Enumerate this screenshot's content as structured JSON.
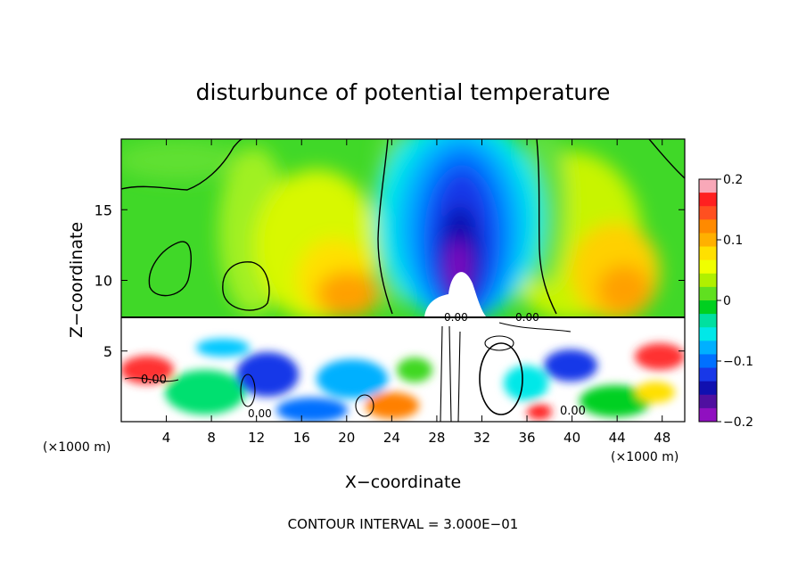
{
  "chart_data": {
    "type": "heatmap",
    "title": "disturbunce of potential temperature",
    "xlabel": "X−coordinate",
    "ylabel": "Z−coordinate",
    "x_unit_left": "(×1000 m)",
    "x_unit_right": "(×1000 m)",
    "xlim": [
      0,
      50
    ],
    "ylim": [
      0,
      20
    ],
    "x_ticks": [
      4,
      8,
      12,
      16,
      20,
      24,
      28,
      32,
      36,
      40,
      44,
      48
    ],
    "y_ticks": [
      5,
      10,
      15
    ],
    "colorbar": {
      "range": [
        -0.2,
        0.2
      ],
      "tick_values": [
        0.2,
        0.1,
        0,
        -0.1,
        -0.2
      ],
      "tick_labels": [
        "0.2",
        "0.1",
        "0",
        "−0.1",
        "−0.2"
      ],
      "colors": [
        "#f8a8b8",
        "#ff2020",
        "#ff5020",
        "#ff8a00",
        "#ffb000",
        "#ffe000",
        "#f0ff00",
        "#b0f000",
        "#60e020",
        "#00d020",
        "#00e0a0",
        "#00e8e8",
        "#00b0ff",
        "#0070ff",
        "#1838e8",
        "#1010b0",
        "#5010a0",
        "#9010c0"
      ]
    },
    "annotations": [
      "0.00",
      "0.00",
      "0.00",
      "0.00",
      "0.00"
    ],
    "footer": "CONTOUR INTERVAL = 3.000E−01"
  }
}
